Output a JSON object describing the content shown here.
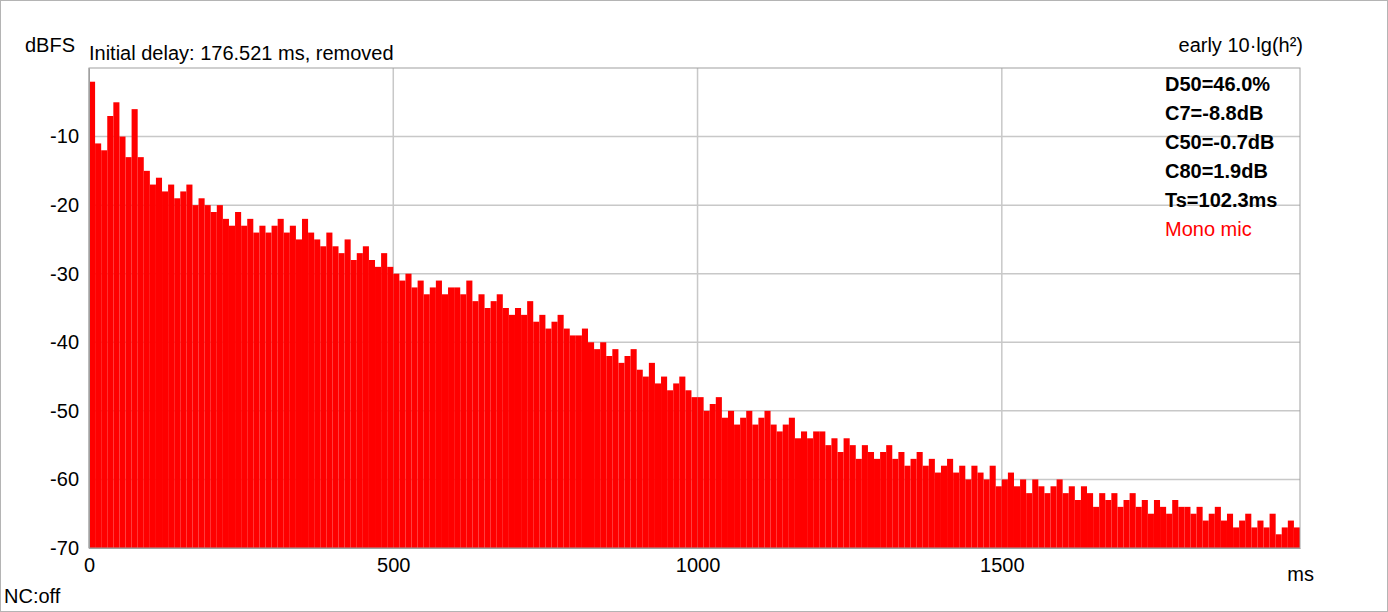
{
  "chart_data": {
    "type": "bar",
    "title": "Initial delay: 176.521 ms, removed",
    "subtitle": "early 10·lg(h²)",
    "y_label": "dBFS",
    "x_label": "ms",
    "note": "NC:off",
    "annotations": [
      "D50=46.0%",
      "C7=-8.8dB",
      "C50=-0.7dB",
      "C80=1.9dB",
      "Ts=102.3ms"
    ],
    "legend": "top-right",
    "grid": true,
    "xlim": [
      0,
      1990
    ],
    "xticks": [
      0,
      500,
      1000,
      1500
    ],
    "ylim": [
      -70,
      0
    ],
    "yticks": [
      -70,
      -60,
      -50,
      -40,
      -30,
      -20,
      -10
    ],
    "x": [
      0,
      10,
      20,
      30,
      40,
      50,
      60,
      70,
      80,
      90,
      100,
      110,
      120,
      130,
      140,
      150,
      160,
      170,
      180,
      190,
      200,
      210,
      220,
      230,
      240,
      250,
      260,
      270,
      280,
      290,
      300,
      310,
      320,
      330,
      340,
      350,
      360,
      370,
      380,
      390,
      400,
      410,
      420,
      430,
      440,
      450,
      460,
      470,
      480,
      490,
      500,
      510,
      520,
      530,
      540,
      550,
      560,
      570,
      580,
      590,
      600,
      610,
      620,
      630,
      640,
      650,
      660,
      670,
      680,
      690,
      700,
      710,
      720,
      730,
      740,
      750,
      760,
      770,
      780,
      790,
      800,
      810,
      820,
      830,
      840,
      850,
      860,
      870,
      880,
      890,
      900,
      910,
      920,
      930,
      940,
      950,
      960,
      970,
      980,
      990,
      1000,
      1010,
      1020,
      1030,
      1040,
      1050,
      1060,
      1070,
      1080,
      1090,
      1100,
      1110,
      1120,
      1130,
      1140,
      1150,
      1160,
      1170,
      1180,
      1190,
      1200,
      1210,
      1220,
      1230,
      1240,
      1250,
      1260,
      1270,
      1280,
      1290,
      1300,
      1310,
      1320,
      1330,
      1340,
      1350,
      1360,
      1370,
      1380,
      1390,
      1400,
      1410,
      1420,
      1430,
      1440,
      1450,
      1460,
      1470,
      1480,
      1490,
      1500,
      1510,
      1520,
      1530,
      1540,
      1550,
      1560,
      1570,
      1580,
      1590,
      1600,
      1610,
      1620,
      1630,
      1640,
      1650,
      1660,
      1670,
      1680,
      1690,
      1700,
      1710,
      1720,
      1730,
      1740,
      1750,
      1760,
      1770,
      1780,
      1790,
      1800,
      1810,
      1820,
      1830,
      1840,
      1850,
      1860,
      1870,
      1880,
      1890,
      1900,
      1910,
      1920,
      1930,
      1940,
      1950,
      1960,
      1970,
      1980
    ],
    "series": [
      {
        "name": "Mono mic",
        "color": "#ff0000",
        "values": [
          -2,
          -11,
          -12,
          -7,
          -5,
          -10,
          -13,
          -6,
          -13,
          -15,
          -17,
          -16,
          -18,
          -17,
          -19,
          -18,
          -17,
          -20,
          -19,
          -20,
          -21,
          -20,
          -22,
          -23,
          -21,
          -23,
          -22,
          -24,
          -23,
          -24,
          -23,
          -22,
          -24,
          -23,
          -25,
          -22,
          -24,
          -25,
          -26,
          -24,
          -26,
          -27,
          -25,
          -28,
          -27,
          -26,
          -28,
          -29,
          -27,
          -29,
          -30,
          -31,
          -30,
          -32,
          -31,
          -33,
          -32,
          -31,
          -33,
          -32,
          -32,
          -33,
          -31,
          -34,
          -33,
          -35,
          -34,
          -33,
          -35,
          -36,
          -35,
          -36,
          -34,
          -37,
          -36,
          -38,
          -37,
          -36,
          -38,
          -39,
          -39,
          -38,
          -40,
          -41,
          -40,
          -42,
          -41,
          -43,
          -42,
          -41,
          -44,
          -45,
          -43,
          -46,
          -45,
          -47,
          -46,
          -45,
          -47,
          -48,
          -48,
          -50,
          -49,
          -48,
          -51,
          -50,
          -52,
          -51,
          -50,
          -52,
          -51,
          -50,
          -52,
          -53,
          -52,
          -51,
          -54,
          -53,
          -54,
          -53,
          -53,
          -55,
          -54,
          -56,
          -54,
          -55,
          -57,
          -55,
          -56,
          -57,
          -56,
          -55,
          -57,
          -56,
          -58,
          -57,
          -56,
          -58,
          -57,
          -59,
          -58,
          -57,
          -59,
          -58,
          -60,
          -58,
          -59,
          -60,
          -58,
          -61,
          -60,
          -59,
          -61,
          -60,
          -62,
          -60,
          -61,
          -62,
          -61,
          -60,
          -62,
          -61,
          -63,
          -61,
          -62,
          -64,
          -62,
          -63,
          -62,
          -64,
          -63,
          -62,
          -64,
          -63,
          -65,
          -63,
          -64,
          -65,
          -63,
          -64,
          -64,
          -65,
          -64,
          -66,
          -65,
          -64,
          -66,
          -65,
          -67,
          -66,
          -65,
          -67,
          -66,
          -67,
          -65,
          -68,
          -67,
          -66,
          -67
        ]
      }
    ]
  }
}
